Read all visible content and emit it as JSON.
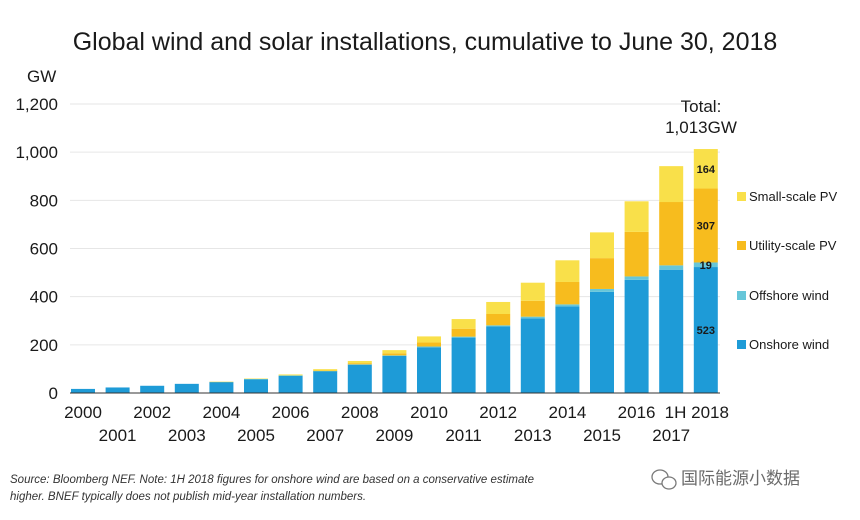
{
  "chart_data": {
    "type": "bar",
    "stacked": true,
    "title": "Global wind and solar installations, cumulative to June 30, 2018",
    "ylabel": "GW",
    "xlabel": "",
    "ylim": [
      0,
      1200
    ],
    "yticks": [
      "0",
      "200",
      "400",
      "600",
      "800",
      "1,000",
      "1,200"
    ],
    "ytick_values": [
      0,
      200,
      400,
      600,
      800,
      1000,
      1200
    ],
    "grid": true,
    "legend_position": "right",
    "categories": [
      "2000",
      "2001",
      "2002",
      "2003",
      "2004",
      "2005",
      "2006",
      "2007",
      "2008",
      "2009",
      "2010",
      "2011",
      "2012",
      "2013",
      "2014",
      "2015",
      "2016",
      "2017",
      "1H 2018"
    ],
    "series": [
      {
        "name": "Onshore wind",
        "color": "#1e9bd7",
        "values": [
          17,
          23,
          30,
          38,
          46,
          57,
          72,
          91,
          118,
          154,
          190,
          230,
          276,
          310,
          360,
          420,
          470,
          512,
          523
        ]
      },
      {
        "name": "Offshore wind",
        "color": "#66c6d9",
        "values": [
          0,
          0,
          0,
          0,
          0,
          1,
          1,
          1,
          1,
          2,
          3,
          4,
          5,
          7,
          8,
          12,
          14,
          18,
          19
        ]
      },
      {
        "name": "Utility-scale PV",
        "color": "#f7bc1e",
        "values": [
          0,
          0,
          0,
          0,
          0,
          0,
          0,
          1,
          5,
          9,
          17,
          33,
          47,
          66,
          93,
          128,
          185,
          263,
          307
        ]
      },
      {
        "name": "Small-scale PV",
        "color": "#f9e04a",
        "values": [
          0,
          0,
          0,
          0,
          1,
          2,
          4,
          6,
          9,
          13,
          25,
          40,
          50,
          75,
          90,
          107,
          127,
          149,
          164
        ]
      }
    ],
    "data_labels": [
      {
        "category": "1H 2018",
        "series": "Onshore wind",
        "text": "523"
      },
      {
        "category": "1H 2018",
        "series": "Offshore wind",
        "text": "19"
      },
      {
        "category": "1H 2018",
        "series": "Utility-scale PV",
        "text": "307"
      },
      {
        "category": "1H 2018",
        "series": "Small-scale PV",
        "text": "164"
      }
    ],
    "annotation": {
      "line1": "Total:",
      "line2": "1,013GW"
    },
    "legend_order": [
      "Small-scale PV",
      "Utility-scale PV",
      "Offshore wind",
      "Onshore wind"
    ]
  },
  "footer": {
    "source_line1": "Source: Bloomberg NEF. Note: 1H 2018 figures for onshore wind are based on a conservative estimate",
    "source_line2": "higher. BNEF typically does not publish mid-year installation numbers.",
    "watermark": "国际能源小数据"
  },
  "colors": {
    "axis": "#333333",
    "grid": "#e6e6e6"
  }
}
